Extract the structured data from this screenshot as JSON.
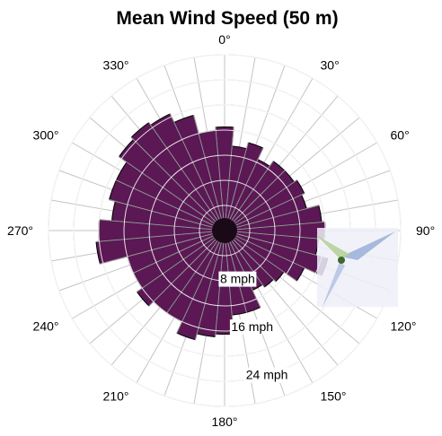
{
  "chart_data": {
    "type": "polar-bar",
    "title": "Mean Wind Speed (50 m)",
    "unit": "mph",
    "radial_max": 28,
    "rings": [
      4,
      8,
      12,
      16,
      20,
      24,
      28
    ],
    "ring_labels": [
      {
        "value": 8,
        "text": "8 mph"
      },
      {
        "value": 16,
        "text": "16 mph"
      },
      {
        "value": 24,
        "text": "24 mph"
      }
    ],
    "angle_labels": [
      "0°",
      "30°",
      "60°",
      "90°",
      "120°",
      "150°",
      "180°",
      "210°",
      "240°",
      "270°",
      "300°",
      "330°"
    ],
    "directions": [
      0,
      10,
      20,
      30,
      40,
      50,
      60,
      70,
      80,
      90,
      100,
      110,
      120,
      130,
      140,
      150,
      160,
      170,
      180,
      190,
      200,
      210,
      220,
      230,
      240,
      250,
      260,
      270,
      280,
      290,
      300,
      310,
      320,
      330,
      340,
      350
    ],
    "values": [
      16.5,
      13.5,
      14.5,
      12.5,
      13.5,
      13.5,
      14,
      13.5,
      15.5,
      16,
      15,
      17,
      14,
      11.5,
      11,
      10.5,
      13.5,
      13.5,
      16.5,
      17,
      18,
      16,
      16,
      17,
      16,
      16,
      20.5,
      20,
      18,
      19,
      19,
      20.5,
      21,
      20.5,
      19,
      16
    ],
    "bar_color": "#5b1855",
    "logo": "turbine-logo"
  }
}
